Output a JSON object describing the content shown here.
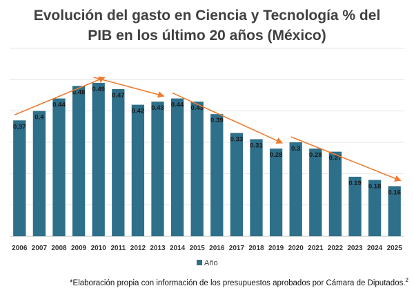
{
  "chart_data": {
    "type": "bar",
    "title_lines": [
      "Evolución del gasto en Ciencia y Tecnología  % del",
      "PIB en los último 20 años (México)"
    ],
    "categories": [
      "2006",
      "2007",
      "2008",
      "2009",
      "2010",
      "2011",
      "2012",
      "2013",
      "2014",
      "2015",
      "2016",
      "2017",
      "2018",
      "2019",
      "2020",
      "2021",
      "2022",
      "2023",
      "2024",
      "2025"
    ],
    "series": [
      {
        "name": "Año",
        "color": "#2e6f8a",
        "values": [
          0.37,
          0.4,
          0.44,
          0.48,
          0.49,
          0.47,
          0.42,
          0.43,
          0.44,
          0.43,
          0.39,
          0.33,
          0.31,
          0.28,
          0.3,
          0.28,
          0.27,
          0.19,
          0.18,
          0.16
        ]
      }
    ],
    "data_labels": [
      "0.37",
      "0.4",
      "0.44",
      "0.48",
      "0.49",
      "0.47",
      "0.42",
      "0.43",
      "0.44",
      "0.43",
      "0.39",
      "0.33",
      "0.31",
      "0.28",
      "0.3",
      "0.28",
      "0.27",
      "0.19",
      "0.18",
      "0.16"
    ],
    "ylim": [
      0,
      0.6
    ],
    "grid": true,
    "legend_position": "bottom",
    "trend_arrow_color": "#ed7d31",
    "trend_arrows": [
      {
        "from": "2006",
        "to": "2010"
      },
      {
        "from": "2010",
        "to": "2013"
      },
      {
        "from": "2014",
        "to": "2019"
      },
      {
        "from": "2020",
        "to": "2025"
      }
    ]
  },
  "footnote": {
    "text": "*Elaboración propia con información de los presupuestos aprobados por Cámara de Diputados.",
    "superscript": "2"
  }
}
